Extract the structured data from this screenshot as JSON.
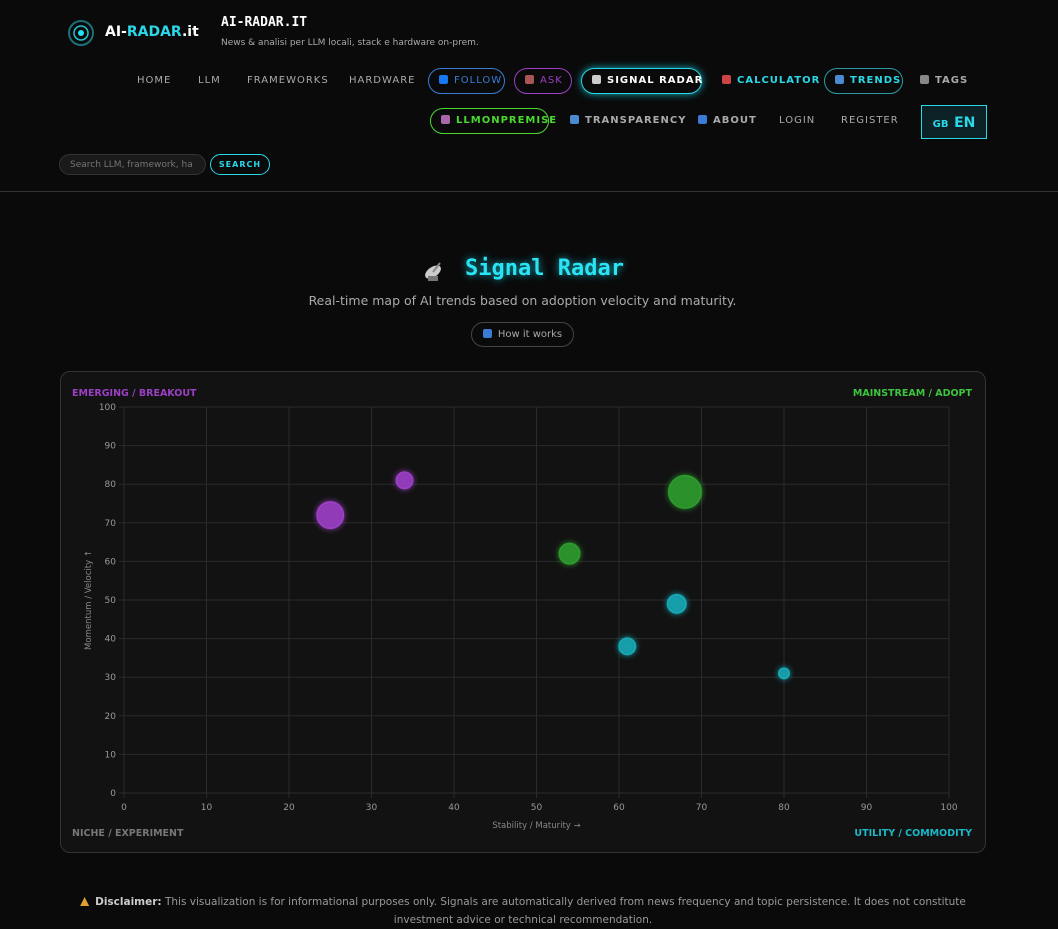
{
  "header": {
    "brand_parts": [
      "AI-",
      "RADAR",
      ".it"
    ],
    "site_title": "AI-RADAR.IT",
    "tagline": "News & analisi per LLM locali, stack e hardware on-prem.",
    "nav": [
      "HOME",
      "LLM",
      "FRAMEWORKS",
      "HARDWARE",
      "FOLLOW",
      "ASK",
      "SIGNAL RADAR",
      "CALCULATOR",
      "TRENDS",
      "TAGS",
      "LLMONPREMISE",
      "TRANSPARENCY",
      "ABOUT",
      "LOGIN",
      "REGISTER"
    ],
    "lang_flag": "GB",
    "lang": "EN",
    "search_placeholder": "Search LLM, framework, ha",
    "search_button": "SEARCH"
  },
  "page": {
    "title": "Signal Radar",
    "subtitle": "Real-time map of AI trends based on adoption velocity and maturity.",
    "how_it_works": "How it works",
    "disclaimer_label": "Disclaimer:",
    "disclaimer_text": "This visualization is for informational purposes only. Signals are automatically derived from news frequency and topic persistence. It does not constitute investment advice or technical recommendation."
  },
  "chart_data": {
    "type": "bubble",
    "quadrants": [
      "EMERGING / BREAKOUT",
      "MAINSTREAM / ADOPT",
      "NICHE / EXPERIMENT",
      "UTILITY / COMMODITY"
    ],
    "x_label": "Stability / Maturity →",
    "y_label": "Momentum / Velocity ↑",
    "xlim": [
      0,
      100
    ],
    "xticks": [
      0,
      10,
      20,
      30,
      40,
      50,
      60,
      70,
      80,
      90,
      100
    ],
    "ylim": [
      0,
      100
    ],
    "yticks": [
      0,
      10,
      20,
      30,
      40,
      50,
      60,
      70,
      80,
      90,
      100
    ],
    "grid": true,
    "series": [
      {
        "color": "#9b3fc4",
        "x": [
          25,
          34
        ],
        "values": [
          72,
          81
        ],
        "sizes": [
          13,
          8
        ]
      },
      {
        "color": "#2e9a2e",
        "x": [
          54,
          68
        ],
        "values": [
          62,
          78
        ],
        "sizes": [
          10,
          16
        ]
      },
      {
        "color": "#17a8b4",
        "x": [
          61,
          67,
          80
        ],
        "values": [
          38,
          49,
          31
        ],
        "sizes": [
          8,
          9,
          5
        ]
      }
    ]
  }
}
